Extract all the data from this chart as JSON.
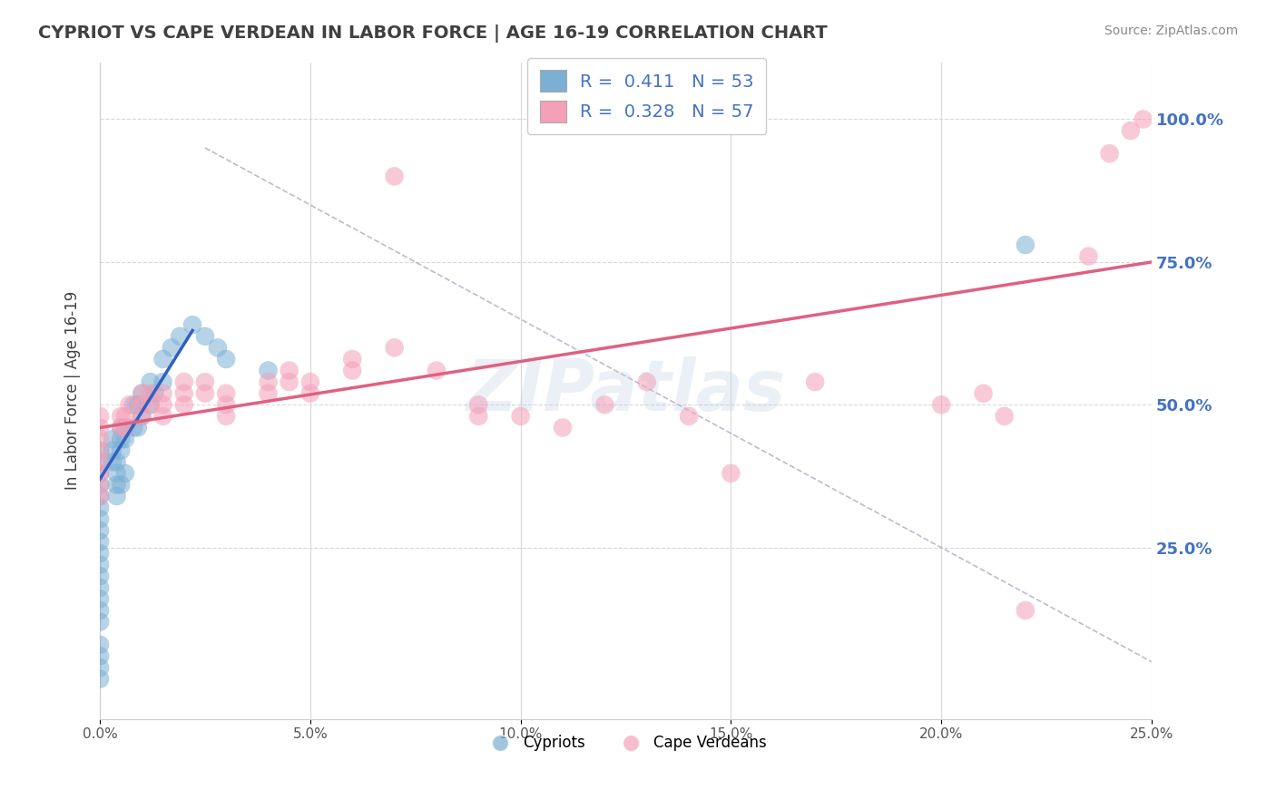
{
  "title": "CYPRIOT VS CAPE VERDEAN IN LABOR FORCE | AGE 16-19 CORRELATION CHART",
  "source_text": "Source: ZipAtlas.com",
  "ylabel": "In Labor Force | Age 16-19",
  "xlim": [
    0.0,
    0.25
  ],
  "ylim": [
    -0.05,
    1.1
  ],
  "xticks": [
    0.0,
    0.05,
    0.1,
    0.15,
    0.2,
    0.25
  ],
  "xtick_labels": [
    "0.0%",
    "5.0%",
    "10.0%",
    "15.0%",
    "20.0%",
    "25.0%"
  ],
  "yticks": [
    0.25,
    0.5,
    0.75,
    1.0
  ],
  "ytick_labels": [
    "25.0%",
    "50.0%",
    "75.0%",
    "100.0%"
  ],
  "background_color": "#ffffff",
  "plot_bg_color": "#ffffff",
  "grid_color": "#d8d8d8",
  "title_color": "#404040",
  "source_color": "#888888",
  "blue_dot_color": "#7bafd4",
  "pink_dot_color": "#f4a0b8",
  "blue_line_color": "#3060c0",
  "pink_line_color": "#e06080",
  "ref_line_color": "#9090b0",
  "tick_label_color": "#4472c4",
  "legend_R1": "0.411",
  "legend_N1": "53",
  "legend_R2": "0.328",
  "legend_N2": "57",
  "legend_label1": "Cypriots",
  "legend_label2": "Cape Verdeans",
  "watermark": "ZIPatlas",
  "blue_line_x": [
    0.0,
    0.022
  ],
  "blue_line_y": [
    0.37,
    0.63
  ],
  "pink_line_x": [
    0.0,
    0.25
  ],
  "pink_line_y": [
    0.46,
    0.75
  ],
  "ref_line_x": [
    0.025,
    0.25
  ],
  "ref_line_y": [
    0.95,
    0.05
  ],
  "blue_dots_x": [
    0.0,
    0.0,
    0.0,
    0.0,
    0.0,
    0.0,
    0.0,
    0.0,
    0.0,
    0.0,
    0.0,
    0.0,
    0.0,
    0.0,
    0.0,
    0.0,
    0.0,
    0.0,
    0.0,
    0.0,
    0.003,
    0.003,
    0.003,
    0.004,
    0.004,
    0.004,
    0.004,
    0.005,
    0.005,
    0.005,
    0.005,
    0.006,
    0.006,
    0.006,
    0.008,
    0.008,
    0.009,
    0.009,
    0.01,
    0.01,
    0.012,
    0.012,
    0.013,
    0.015,
    0.015,
    0.017,
    0.019,
    0.022,
    0.025,
    0.028,
    0.03,
    0.04,
    0.22
  ],
  "blue_dots_y": [
    0.42,
    0.4,
    0.38,
    0.36,
    0.34,
    0.32,
    0.3,
    0.28,
    0.26,
    0.24,
    0.22,
    0.2,
    0.18,
    0.16,
    0.14,
    0.12,
    0.08,
    0.06,
    0.04,
    0.02,
    0.44,
    0.42,
    0.4,
    0.4,
    0.38,
    0.36,
    0.34,
    0.46,
    0.44,
    0.42,
    0.36,
    0.46,
    0.44,
    0.38,
    0.5,
    0.46,
    0.5,
    0.46,
    0.52,
    0.48,
    0.54,
    0.5,
    0.52,
    0.58,
    0.54,
    0.6,
    0.62,
    0.64,
    0.62,
    0.6,
    0.58,
    0.56,
    0.78
  ],
  "pink_dots_x": [
    0.0,
    0.0,
    0.0,
    0.0,
    0.0,
    0.0,
    0.0,
    0.0,
    0.005,
    0.005,
    0.006,
    0.006,
    0.007,
    0.01,
    0.01,
    0.01,
    0.012,
    0.012,
    0.015,
    0.015,
    0.015,
    0.02,
    0.02,
    0.02,
    0.025,
    0.025,
    0.03,
    0.03,
    0.03,
    0.04,
    0.04,
    0.045,
    0.045,
    0.05,
    0.05,
    0.06,
    0.06,
    0.07,
    0.07,
    0.08,
    0.09,
    0.09,
    0.1,
    0.11,
    0.12,
    0.13,
    0.14,
    0.15,
    0.17,
    0.2,
    0.21,
    0.215,
    0.22,
    0.235,
    0.24,
    0.245,
    0.248
  ],
  "pink_dots_y": [
    0.48,
    0.46,
    0.44,
    0.42,
    0.4,
    0.38,
    0.36,
    0.34,
    0.48,
    0.46,
    0.48,
    0.46,
    0.5,
    0.52,
    0.5,
    0.48,
    0.52,
    0.5,
    0.52,
    0.5,
    0.48,
    0.54,
    0.52,
    0.5,
    0.54,
    0.52,
    0.52,
    0.5,
    0.48,
    0.54,
    0.52,
    0.56,
    0.54,
    0.54,
    0.52,
    0.58,
    0.56,
    0.9,
    0.6,
    0.56,
    0.5,
    0.48,
    0.48,
    0.46,
    0.5,
    0.54,
    0.48,
    0.38,
    0.54,
    0.5,
    0.52,
    0.48,
    0.14,
    0.76,
    0.94,
    0.98,
    1.0
  ]
}
